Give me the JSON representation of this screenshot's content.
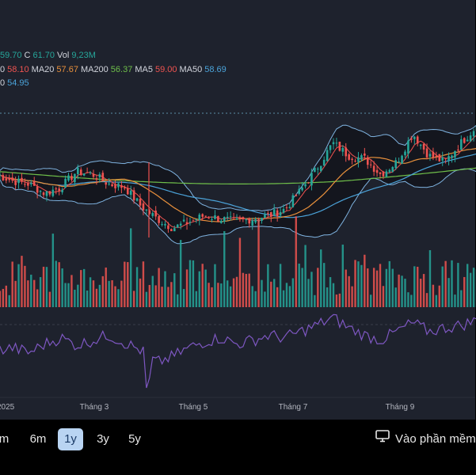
{
  "legend": {
    "line1": [
      {
        "text": "59.70",
        "color": "#26a69a"
      },
      {
        "text": "C",
        "color": "#d1d4dc"
      },
      {
        "text": "61.70",
        "color": "#26a69a"
      },
      {
        "text": "Vol",
        "color": "#d1d4dc"
      },
      {
        "text": "9,23M",
        "color": "#26a69a"
      }
    ],
    "line2": [
      {
        "text": "0",
        "color": "#d1d4dc"
      },
      {
        "text": "58.10",
        "color": "#ef5350"
      },
      {
        "text": "MA20",
        "color": "#d1d4dc"
      },
      {
        "text": "57.67",
        "color": "#e8903c"
      },
      {
        "text": "MA200",
        "color": "#d1d4dc"
      },
      {
        "text": "56.37",
        "color": "#6fbf4a"
      },
      {
        "text": "MA5",
        "color": "#d1d4dc"
      },
      {
        "text": "59.00",
        "color": "#ef5350"
      },
      {
        "text": "MA50",
        "color": "#d1d4dc"
      },
      {
        "text": "58.69",
        "color": "#4ba3d9"
      }
    ],
    "line3": [
      {
        "text": "0",
        "color": "#d1d4dc"
      },
      {
        "text": "54.95",
        "color": "#4ba3d9"
      }
    ]
  },
  "colors": {
    "up": "#26a69a",
    "down": "#ef5350",
    "ma20": "#e8903c",
    "ma200": "#6fbf4a",
    "ma5": "#ef5350",
    "ma50": "#4ba3d9",
    "bollinger": "#7fb3e0",
    "rsi": "#7e57c2"
  },
  "chart_data": [
    {
      "type": "candlestick",
      "title": "",
      "x_ticks": [
        "2025",
        "Tháng 3",
        "Tháng 5",
        "Tháng 7",
        "Tháng 9"
      ],
      "indicators": [
        "MA5",
        "MA20",
        "MA50",
        "MA200",
        "Bollinger Bands"
      ],
      "close_path": [
        [
          "Jan",
          54.0
        ],
        [
          "Jan",
          53.0
        ],
        [
          "Feb",
          52.5
        ],
        [
          "Feb",
          51.0
        ],
        [
          "Feb",
          52.0
        ],
        [
          "Mar",
          54.5
        ],
        [
          "Mar",
          54.0
        ],
        [
          "Mar",
          52.5
        ],
        [
          "Mar",
          52.0
        ],
        [
          "Apr",
          49.0
        ],
        [
          "Apr",
          47.0
        ],
        [
          "Apr",
          45.5
        ],
        [
          "May",
          46.5
        ],
        [
          "May",
          47.5
        ],
        [
          "May",
          47.0
        ],
        [
          "Jun",
          46.5
        ],
        [
          "Jun",
          47.0
        ],
        [
          "Jun",
          47.5
        ],
        [
          "Jul",
          48.5
        ],
        [
          "Jul",
          51.5
        ],
        [
          "Jul",
          55.0
        ],
        [
          "Aug",
          59.0
        ],
        [
          "Aug",
          57.0
        ],
        [
          "Aug",
          56.5
        ],
        [
          "Sep",
          54.0
        ],
        [
          "Sep",
          56.0
        ],
        [
          "Sep",
          60.5
        ],
        [
          "Oct",
          57.0
        ],
        [
          "Oct",
          56.0
        ],
        [
          "Oct",
          59.0
        ],
        [
          "Oct",
          61.7
        ]
      ],
      "last_close": 61.7
    },
    {
      "type": "bar",
      "title": "Vol",
      "last_value": "9,23M"
    },
    {
      "type": "line",
      "title": "",
      "description_values": [
        40,
        42,
        38,
        45,
        50,
        44,
        48,
        52,
        46,
        40,
        30,
        35,
        42,
        47,
        50,
        45,
        48,
        52,
        50,
        55,
        60,
        66,
        58,
        52,
        48,
        55,
        62,
        55,
        58,
        60,
        64
      ]
    }
  ],
  "ranges": [
    {
      "label": "m",
      "active": false
    },
    {
      "label": "6m",
      "active": false
    },
    {
      "label": "1y",
      "active": true
    },
    {
      "label": "3y",
      "active": false
    },
    {
      "label": "5y",
      "active": false
    }
  ],
  "open_label": "Vào phần mềm"
}
